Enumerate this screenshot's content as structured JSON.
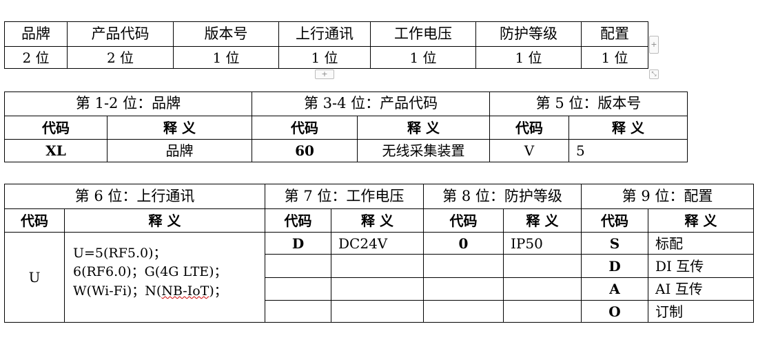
{
  "table1": {
    "headers": [
      "品牌",
      "产品代码",
      "版本号",
      "上行通讯",
      "工作电压",
      "防护等级",
      "配置"
    ],
    "values": [
      "2 位",
      "2 位",
      "1 位",
      "1 位",
      "1 位",
      "1 位",
      "1 位"
    ]
  },
  "table2": {
    "groups": [
      "第 1-2 位：品牌",
      "第 3-4 位：产品代码",
      "第 5 位：版本号"
    ],
    "code_label": "代码",
    "meaning_label": "释 义",
    "row": [
      "XL",
      "品牌",
      "60",
      "无线采集装置",
      "V",
      "5"
    ]
  },
  "table3": {
    "groups": [
      "第 6 位：上行通讯",
      "第 7 位：工作电压",
      "第 8 位：防护等级",
      "第 9 位：配置"
    ],
    "code_label": "代码",
    "meaning_label": "释 义",
    "comm_code": "U",
    "comm_lines": [
      "U=5(RF5.0)；",
      "6(RF6.0)；G(4G LTE)；",
      "W(Wi-Fi)；N(",
      "NB-IoT",
      ")；"
    ],
    "voltage": {
      "code": "D",
      "meaning": "DC24V"
    },
    "protection": {
      "code": "0",
      "meaning": "IP50"
    },
    "config": [
      {
        "code": "S",
        "meaning": "标配"
      },
      {
        "code": "D",
        "meaning": "DI 互传"
      },
      {
        "code": "A",
        "meaning": "AI 互传"
      },
      {
        "code": "O",
        "meaning": "订制"
      }
    ]
  },
  "controls": {
    "add": "+",
    "resize": "⤡"
  }
}
